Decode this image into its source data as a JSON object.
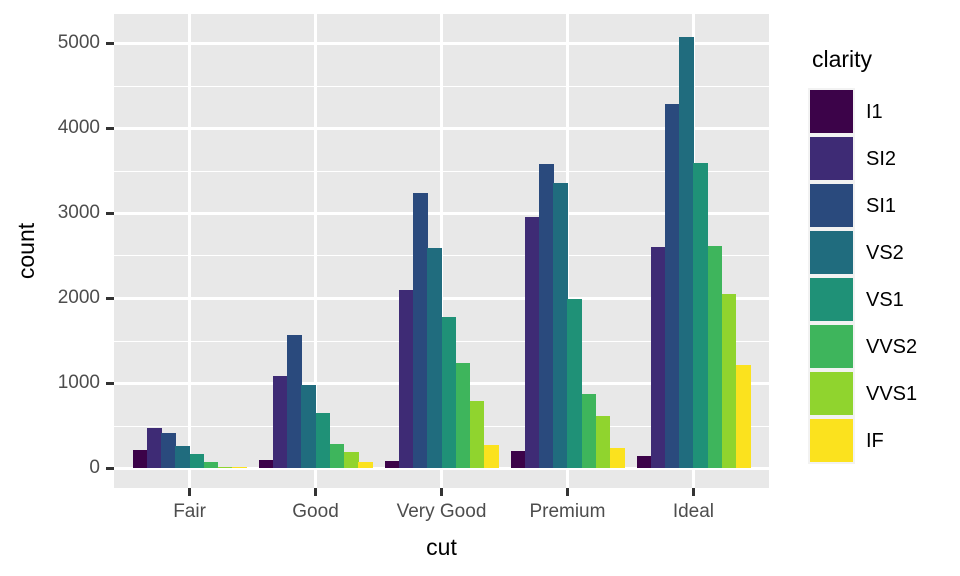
{
  "chart_data": {
    "type": "bar",
    "variant": "dodged",
    "xlabel": "cut",
    "ylabel": "count",
    "legend_title": "clarity",
    "legend_position": "right",
    "categories": [
      "Fair",
      "Good",
      "Very Good",
      "Premium",
      "Ideal"
    ],
    "series": [
      {
        "name": "I1",
        "color": "#3C0349",
        "values": [
          210,
          96,
          84,
          205,
          146
        ]
      },
      {
        "name": "SI2",
        "color": "#3E2B75",
        "values": [
          466,
          1081,
          2100,
          2949,
          2598
        ]
      },
      {
        "name": "SI1",
        "color": "#2A4A7D",
        "values": [
          408,
          1560,
          3240,
          3575,
          4282
        ]
      },
      {
        "name": "VS2",
        "color": "#206C7E",
        "values": [
          261,
          978,
          2591,
          3357,
          5071
        ]
      },
      {
        "name": "VS1",
        "color": "#1F9177",
        "values": [
          170,
          648,
          1775,
          1989,
          3589
        ]
      },
      {
        "name": "VVS2",
        "color": "#3EB55C",
        "values": [
          69,
          286,
          1235,
          870,
          2606
        ]
      },
      {
        "name": "VVS1",
        "color": "#90D42E",
        "values": [
          17,
          186,
          789,
          616,
          2047
        ]
      },
      {
        "name": "IF",
        "color": "#FBE21E",
        "values": [
          9,
          71,
          268,
          230,
          1212
        ]
      }
    ],
    "y_ticks": [
      0,
      1000,
      2000,
      3000,
      4000,
      5000
    ],
    "y_minor_ticks": [
      500,
      1500,
      2500,
      3500,
      4500
    ],
    "ylim": [
      -235,
      5341
    ],
    "grid": true,
    "panel_bg": "#E8E8E8",
    "grid_color": "#FFFFFF",
    "tick_color": "#333333",
    "tick_label_color": "#4D4D4D"
  }
}
